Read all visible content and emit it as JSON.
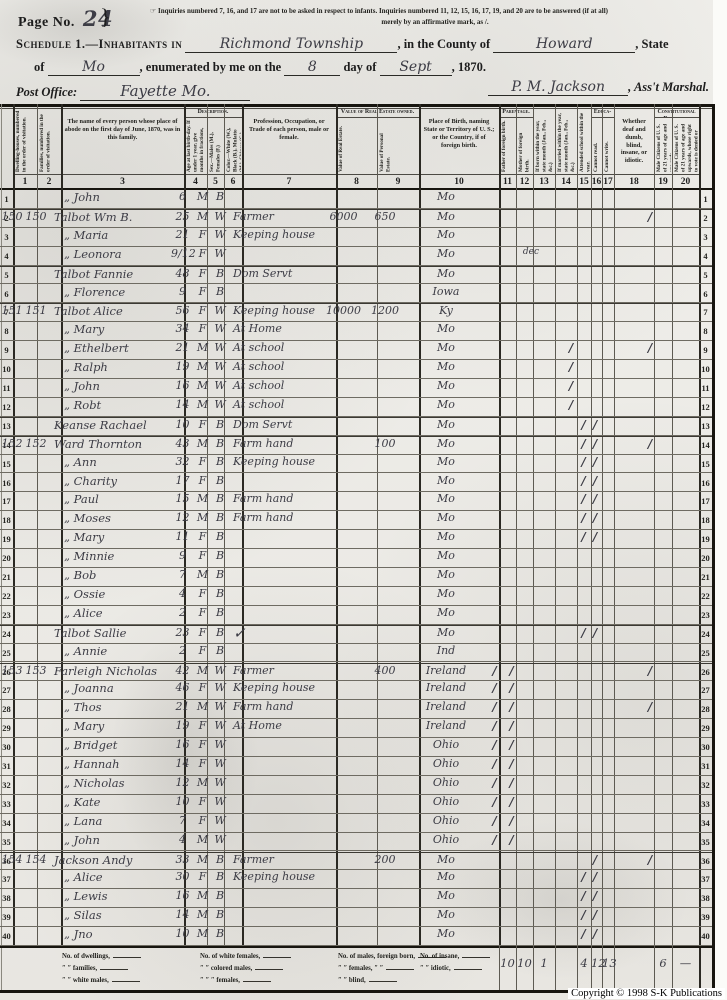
{
  "page": {
    "label": "Page No.",
    "number": "24"
  },
  "instructions": {
    "hand": "☞",
    "line1": "Inquiries numbered 7, 16, and 17 are not to be asked in respect to infants.   Inquiries numbered 11, 12, 15, 16, 17, 19, and 20 are to be answered (if at all)",
    "line2": "merely by an affirmative mark, as /."
  },
  "schedule": {
    "prefix": "Schedule 1.—Inhabitants in",
    "township": "Richmond Township",
    "county_label": ", in the County of",
    "county": "Howard",
    "state_suffix": ", State",
    "of_label": "of",
    "state": "Mo",
    "enum_label": ", enumerated by me on the",
    "day": "8",
    "day_of_label": "day of",
    "month": "Sept",
    "year_label": ", 1870.",
    "po_label": "Post Office:",
    "post_office": "Fayette Mo.",
    "signature": "P. M. Jackson",
    "marshal_label": ", Ass't Marshal."
  },
  "table": {
    "groups": {
      "description": "Description.",
      "owned": "Value of Real Estate owned.",
      "parentage": "Parentage.",
      "education": "Educa- tion.",
      "constitutional": "Constitutional Relations."
    },
    "columns": [
      {
        "num": "1",
        "title": "Dwelling-houses, numbered in the order of visitation."
      },
      {
        "num": "2",
        "title": "Families, numbered in the order of visitation."
      },
      {
        "num": "3",
        "title": "The name of every person whose place of abode on the first day of June, 1870, was in this family."
      },
      {
        "num": "4",
        "title": "Age at last birth-day. If under 1 year, give months in fractions, thus, 3/12."
      },
      {
        "num": "5",
        "title": "Sex.—Males (M.), Females (F.)"
      },
      {
        "num": "6",
        "title": "Color.—White (W.), Black (B.), Mulatto (M.), Chinese (C.), Indian (I.)"
      },
      {
        "num": "7",
        "title": "Profession, Occupation, or Trade of each person, male or female."
      },
      {
        "num": "8",
        "title": "Value of Real Estate."
      },
      {
        "num": "9",
        "title": "Value of Personal Estate."
      },
      {
        "num": "10",
        "title": "Place of Birth, naming State or Territory of U. S.; or the Country, if of foreign birth."
      },
      {
        "num": "11",
        "title": "Father of foreign birth."
      },
      {
        "num": "12",
        "title": "Mother of foreign birth."
      },
      {
        "num": "13",
        "title": "If born within the year, state month (Jan., Feb., &c.)"
      },
      {
        "num": "14",
        "title": "If married within the year, state month (Jan., Feb., &c.)"
      },
      {
        "num": "15",
        "title": "Attended school within the year."
      },
      {
        "num": "16",
        "title": "Cannot read."
      },
      {
        "num": "17",
        "title": "Cannot write."
      },
      {
        "num": "18",
        "title": "Whether deaf and dumb, blind, insane, or idiotic."
      },
      {
        "num": "19",
        "title": "Male Citizens of U. S. of 21 years of age and upwards."
      },
      {
        "num": "20",
        "title": "Male Citizens of U. S. of 21 years of age and upwards, whose right to vote is denied or abridged on other grounds than rebellion or other crime."
      }
    ],
    "rows": [
      {
        "n": 1,
        "name": "„ John",
        "age": "6",
        "sex": "M",
        "color": "B",
        "birth": "Mo"
      },
      {
        "n": 2,
        "dw": "150",
        "fam": "150",
        "name": "Talbot Wm B.",
        "age": "25",
        "sex": "M",
        "color": "W",
        "occ": "Farmer",
        "real": "6000",
        "pers": "650",
        "birth": "Mo",
        "m19": "/"
      },
      {
        "n": 3,
        "name": "„ Maria",
        "age": "21",
        "sex": "F",
        "color": "W",
        "occ": "Keeping house",
        "birth": "Mo"
      },
      {
        "n": 4,
        "name": "„ Leonora",
        "age": "9/12",
        "sex": "F",
        "color": "W",
        "birth": "Mo",
        "m13": "dec"
      },
      {
        "n": 5,
        "name": "Talbot Fannie",
        "age": "48",
        "sex": "F",
        "color": "B",
        "occ": "Dom Servt",
        "birth": "Mo"
      },
      {
        "n": 6,
        "name": "„ Florence",
        "age": "9",
        "sex": "F",
        "color": "B",
        "birth": "Iowa"
      },
      {
        "n": 7,
        "dw": "151",
        "fam": "151",
        "name": "Talbot Alice",
        "age": "56",
        "sex": "F",
        "color": "W",
        "occ": "Keeping house",
        "real": "10000",
        "pers": "1200",
        "birth": "Ky"
      },
      {
        "n": 8,
        "name": "„ Mary",
        "age": "34",
        "sex": "F",
        "color": "W",
        "occ": "At Home",
        "birth": "Mo"
      },
      {
        "n": 9,
        "name": "„ Ethelbert",
        "age": "21",
        "sex": "M",
        "color": "W",
        "occ": "At school",
        "birth": "Mo",
        "m15": "/",
        "m19": "/"
      },
      {
        "n": 10,
        "name": "„ Ralph",
        "age": "19",
        "sex": "M",
        "color": "W",
        "occ": "At school",
        "birth": "Mo",
        "m15": "/"
      },
      {
        "n": 11,
        "name": "„ John",
        "age": "16",
        "sex": "M",
        "color": "W",
        "occ": "At school",
        "birth": "Mo",
        "m15": "/"
      },
      {
        "n": 12,
        "name": "„ Robt",
        "age": "14",
        "sex": "M",
        "color": "W",
        "occ": "At school",
        "birth": "Mo",
        "m15": "/"
      },
      {
        "n": 13,
        "name": "Keanse Rachael",
        "age": "10",
        "sex": "F",
        "color": "B",
        "occ": "Dom Servt",
        "birth": "Mo",
        "m16": "/",
        "m17": "/"
      },
      {
        "n": 14,
        "dw": "152",
        "fam": "152",
        "name": "Ward Thornton",
        "age": "43",
        "sex": "M",
        "color": "B",
        "occ": "Farm hand",
        "pers": "100",
        "birth": "Mo",
        "m16": "/",
        "m17": "/",
        "m19": "/"
      },
      {
        "n": 15,
        "name": "„ Ann",
        "age": "32",
        "sex": "F",
        "color": "B",
        "occ": "Keeping house",
        "birth": "Mo",
        "m16": "/",
        "m17": "/"
      },
      {
        "n": 16,
        "name": "„ Charity",
        "age": "17",
        "sex": "F",
        "color": "B",
        "birth": "Mo",
        "m16": "/",
        "m17": "/"
      },
      {
        "n": 17,
        "name": "„ Paul",
        "age": "15",
        "sex": "M",
        "color": "B",
        "occ": "Farm hand",
        "birth": "Mo",
        "m16": "/",
        "m17": "/"
      },
      {
        "n": 18,
        "name": "„ Moses",
        "age": "12",
        "sex": "M",
        "color": "B",
        "occ": "Farm hand",
        "birth": "Mo",
        "m16": "/",
        "m17": "/"
      },
      {
        "n": 19,
        "name": "„ Mary",
        "age": "11",
        "sex": "F",
        "color": "B",
        "birth": "Mo",
        "m16": "/",
        "m17": "/"
      },
      {
        "n": 20,
        "name": "„ Minnie",
        "age": "9",
        "sex": "F",
        "color": "B",
        "birth": "Mo"
      },
      {
        "n": 21,
        "name": "„ Bob",
        "age": "7",
        "sex": "M",
        "color": "B",
        "birth": "Mo"
      },
      {
        "n": 22,
        "name": "„ Ossie",
        "age": "4",
        "sex": "F",
        "color": "B",
        "birth": "Mo"
      },
      {
        "n": 23,
        "name": "„ Alice",
        "age": "2",
        "sex": "F",
        "color": "B",
        "birth": "Mo"
      },
      {
        "n": 24,
        "name": "Talbot Sallie",
        "age": "23",
        "sex": "F",
        "color": "B",
        "check": "✓",
        "birth": "Mo",
        "m16": "/",
        "m17": "/"
      },
      {
        "n": 25,
        "name": "„ Annie",
        "age": "2",
        "sex": "F",
        "color": "B",
        "birth": "Ind"
      },
      {
        "n": 26,
        "dw": "153",
        "fam": "153",
        "name": "Farleigh Nicholas",
        "age": "42",
        "sex": "M",
        "color": "W",
        "occ": "Farmer",
        "pers": "400",
        "birth": "Ireland",
        "m11": "/",
        "m12": "/",
        "m19": "/"
      },
      {
        "n": 27,
        "name": "„ Joanna",
        "age": "46",
        "sex": "F",
        "color": "W",
        "occ": "Keeping house",
        "birth": "Ireland",
        "m11": "/",
        "m12": "/"
      },
      {
        "n": 28,
        "name": "„ Thos",
        "age": "21",
        "sex": "M",
        "color": "W",
        "occ": "Farm hand",
        "birth": "Ireland",
        "m11": "/",
        "m12": "/",
        "m19": "/"
      },
      {
        "n": 29,
        "name": "„ Mary",
        "age": "19",
        "sex": "F",
        "color": "W",
        "occ": "At Home",
        "birth": "Ireland",
        "m11": "/",
        "m12": "/"
      },
      {
        "n": 30,
        "name": "„ Bridget",
        "age": "16",
        "sex": "F",
        "color": "W",
        "birth": "Ohio",
        "m11": "/",
        "m12": "/"
      },
      {
        "n": 31,
        "name": "„ Hannah",
        "age": "14",
        "sex": "F",
        "color": "W",
        "birth": "Ohio",
        "m11": "/",
        "m12": "/"
      },
      {
        "n": 32,
        "name": "„ Nicholas",
        "age": "12",
        "sex": "M",
        "color": "W",
        "birth": "Ohio",
        "m11": "/",
        "m12": "/"
      },
      {
        "n": 33,
        "name": "„ Kate",
        "age": "10",
        "sex": "F",
        "color": "W",
        "birth": "Ohio",
        "m11": "/",
        "m12": "/"
      },
      {
        "n": 34,
        "name": "„ Lana",
        "age": "7",
        "sex": "F",
        "color": "W",
        "birth": "Ohio",
        "m11": "/",
        "m12": "/"
      },
      {
        "n": 35,
        "name": "„ John",
        "age": "4",
        "sex": "M",
        "color": "W",
        "birth": "Ohio",
        "m11": "/",
        "m12": "/"
      },
      {
        "n": 36,
        "dw": "154",
        "fam": "154",
        "name": "Jackson Andy",
        "age": "33",
        "sex": "M",
        "color": "B",
        "occ": "Farmer",
        "pers": "200",
        "birth": "Mo",
        "m17": "/",
        "m19": "/"
      },
      {
        "n": 37,
        "name": "„ Alice",
        "age": "30",
        "sex": "F",
        "color": "B",
        "occ": "Keeping house",
        "birth": "Mo",
        "m16": "/",
        "m17": "/"
      },
      {
        "n": 38,
        "name": "„ Lewis",
        "age": "16",
        "sex": "M",
        "color": "B",
        "birth": "Mo",
        "m16": "/",
        "m17": "/"
      },
      {
        "n": 39,
        "name": "„ Silas",
        "age": "14",
        "sex": "M",
        "color": "B",
        "birth": "Mo",
        "m16": "/",
        "m17": "/"
      },
      {
        "n": 40,
        "name": "„ Jno",
        "age": "10",
        "sex": "M",
        "color": "B",
        "birth": "Mo",
        "m16": "/",
        "m17": "/"
      }
    ]
  },
  "footer": {
    "block1": [
      "No. of dwellings,",
      "″  ″  families,",
      "″  ″  white males,"
    ],
    "block2": [
      "No. of white females,",
      "″  ″  colored males,",
      "″  ″     ″     females,"
    ],
    "block3": [
      "No. of males, foreign born,",
      "″  ″  females,   ″     ″",
      "″  ″  blind,"
    ],
    "block4": [
      "No. of insane,",
      "″  ″  idiotic,"
    ],
    "totals": {
      "11": "10",
      "12": "10",
      "13": "1",
      "15": "4",
      "16": "12",
      "17": "13",
      "19": "6",
      "20": "—"
    }
  },
  "copyright": "Copyright © 1998 S-K Publications"
}
